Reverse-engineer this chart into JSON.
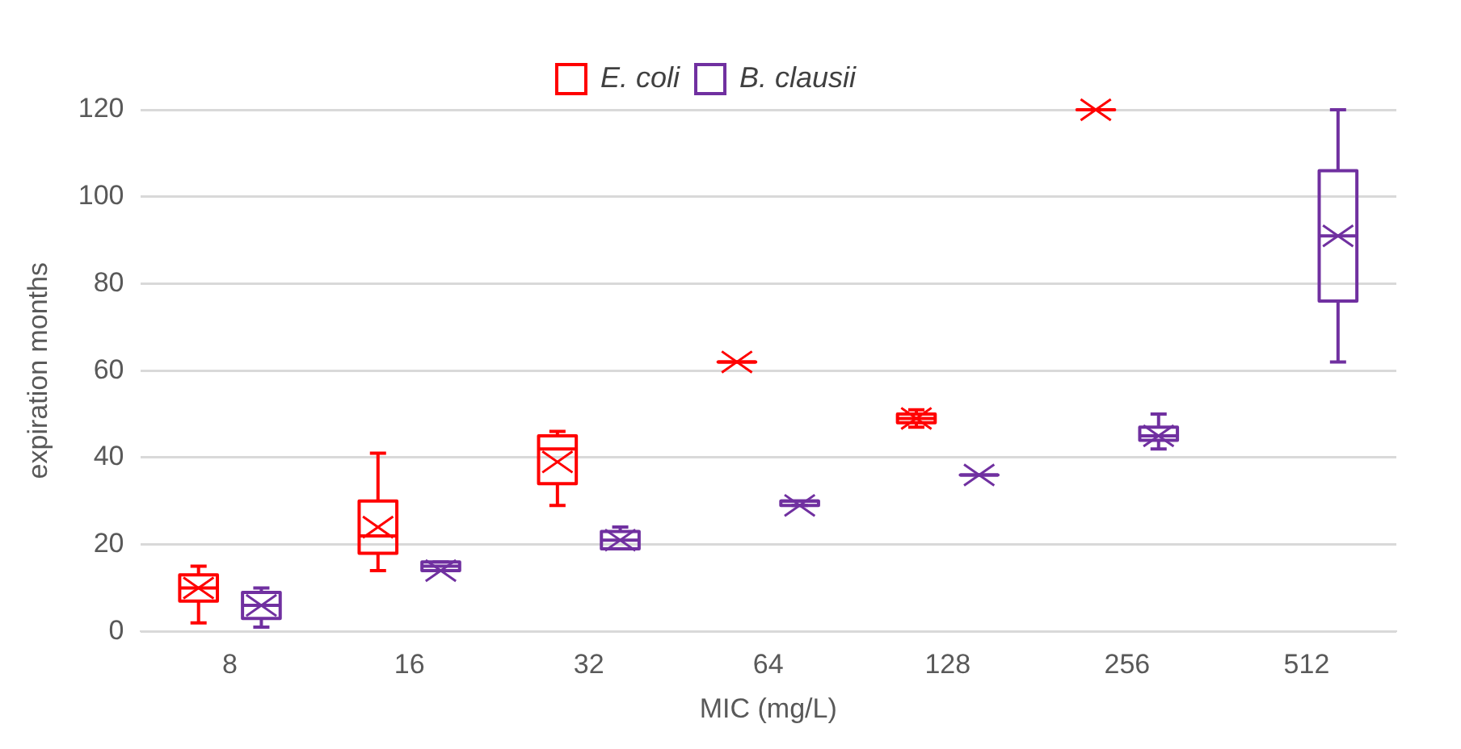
{
  "chart_data": {
    "type": "box",
    "xlabel": "MIC (mg/L)",
    "ylabel": "expiration months",
    "categories": [
      "8",
      "16",
      "32",
      "64",
      "128",
      "256",
      "512"
    ],
    "ylim": [
      0,
      120
    ],
    "yticks": [
      0,
      20,
      40,
      60,
      80,
      100,
      120
    ],
    "grid": "y",
    "legend": "top",
    "series": [
      {
        "name": "E. coli",
        "color": "#ff0000",
        "boxes": [
          {
            "low": 2,
            "q1": 7,
            "median": 10,
            "q3": 13,
            "high": 15,
            "mean": 10
          },
          {
            "low": 14,
            "q1": 18,
            "median": 22,
            "q3": 30,
            "high": 41,
            "mean": 24
          },
          {
            "low": 29,
            "q1": 34,
            "median": 42,
            "q3": 45,
            "high": 46,
            "mean": 39
          },
          {
            "low": 62,
            "q1": 62,
            "median": 62,
            "q3": 62,
            "high": 62,
            "mean": 62
          },
          {
            "low": 47,
            "q1": 48,
            "median": 49,
            "q3": 50,
            "high": 51,
            "mean": 49
          },
          {
            "low": 120,
            "q1": 120,
            "median": 120,
            "q3": 120,
            "high": 120,
            "mean": 120
          },
          null
        ]
      },
      {
        "name": "B. clausii",
        "color": "#7030a0",
        "boxes": [
          {
            "low": 1,
            "q1": 3,
            "median": 6,
            "q3": 9,
            "high": 10,
            "mean": 6
          },
          {
            "low": 14,
            "q1": 14,
            "median": 15,
            "q3": 16,
            "high": 16,
            "mean": 14
          },
          {
            "low": 19,
            "q1": 19,
            "median": 21,
            "q3": 23,
            "high": 24,
            "mean": 21
          },
          {
            "low": 29,
            "q1": 29,
            "median": 30,
            "q3": 30,
            "high": 30,
            "mean": 29
          },
          {
            "low": 36,
            "q1": 36,
            "median": 36,
            "q3": 36,
            "high": 36,
            "mean": 36
          },
          {
            "low": 42,
            "q1": 44,
            "median": 45,
            "q3": 47,
            "high": 50,
            "mean": 45
          },
          {
            "low": 62,
            "q1": 76,
            "median": 91,
            "q3": 106,
            "high": 120,
            "mean": 91
          }
        ]
      }
    ]
  }
}
